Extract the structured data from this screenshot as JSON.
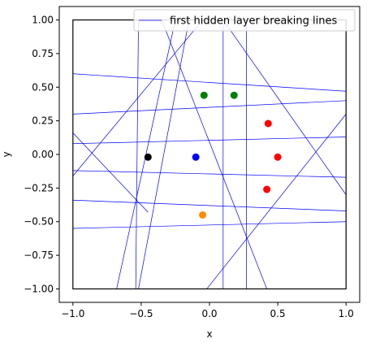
{
  "chart_data": {
    "type": "scatter",
    "xlabel": "x",
    "ylabel": "y",
    "xlim": [
      -1.1,
      1.1
    ],
    "ylim": [
      -1.1,
      1.1
    ],
    "x_ticks": [
      -1.0,
      -0.5,
      0.0,
      0.5,
      1.0
    ],
    "y_ticks": [
      -1.0,
      -0.75,
      -0.5,
      -0.25,
      0.0,
      0.25,
      0.5,
      0.75,
      1.0
    ],
    "x_tick_labels": [
      "−1.0",
      "−0.5",
      "0.0",
      "0.5",
      "1.0"
    ],
    "y_tick_labels": [
      "−1.00",
      "−0.75",
      "−0.50",
      "−0.25",
      "0.00",
      "0.25",
      "0.50",
      "0.75",
      "1.00"
    ],
    "grid": false,
    "legend": {
      "position": "top-right",
      "entries": [
        "first hidden layer breaking lines"
      ]
    },
    "box": {
      "x": [
        -1,
        1
      ],
      "y": [
        -1,
        1
      ],
      "color": "#000000"
    },
    "line_color": "#0000ff",
    "lines": [
      {
        "from": [
          -1.0,
          0.6
        ],
        "to": [
          1.0,
          0.47
        ]
      },
      {
        "from": [
          -1.0,
          0.3
        ],
        "to": [
          1.0,
          0.4
        ]
      },
      {
        "from": [
          -1.0,
          0.08
        ],
        "to": [
          1.0,
          0.13
        ]
      },
      {
        "from": [
          -1.0,
          -0.12
        ],
        "to": [
          1.0,
          -0.17
        ]
      },
      {
        "from": [
          -1.0,
          -0.34
        ],
        "to": [
          1.0,
          -0.42
        ]
      },
      {
        "from": [
          -1.0,
          -0.55
        ],
        "to": [
          1.0,
          -0.5
        ]
      },
      {
        "from": [
          -0.52,
          1.0
        ],
        "to": [
          -0.54,
          -1.0
        ]
      },
      {
        "from": [
          0.1,
          1.0
        ],
        "to": [
          0.1,
          -1.0
        ]
      },
      {
        "from": [
          0.27,
          1.0
        ],
        "to": [
          0.27,
          -1.0
        ]
      },
      {
        "from": [
          -0.25,
          1.0
        ],
        "to": [
          -0.68,
          -1.0
        ]
      },
      {
        "from": [
          -0.15,
          1.0
        ],
        "to": [
          -0.52,
          -1.0
        ]
      },
      {
        "from": [
          -0.35,
          1.0
        ],
        "to": [
          0.42,
          -1.0
        ]
      },
      {
        "from": [
          -1.0,
          -0.16
        ],
        "to": [
          -0.05,
          1.0
        ]
      },
      {
        "from": [
          -1.0,
          0.16
        ],
        "to": [
          -0.45,
          -0.43
        ]
      },
      {
        "from": [
          0.1,
          1.0
        ],
        "to": [
          1.0,
          -0.3
        ]
      },
      {
        "from": [
          -0.02,
          -1.0
        ],
        "to": [
          1.0,
          0.3
        ]
      }
    ],
    "points": [
      {
        "x": -0.45,
        "y": -0.02,
        "color": "#000000"
      },
      {
        "x": -0.1,
        "y": -0.02,
        "color": "#0000ff"
      },
      {
        "x": -0.04,
        "y": 0.44,
        "color": "#008000"
      },
      {
        "x": 0.18,
        "y": 0.44,
        "color": "#008000"
      },
      {
        "x": 0.43,
        "y": 0.23,
        "color": "#ff0000"
      },
      {
        "x": 0.5,
        "y": -0.02,
        "color": "#ff0000"
      },
      {
        "x": 0.42,
        "y": -0.26,
        "color": "#ff0000"
      },
      {
        "x": -0.05,
        "y": -0.45,
        "color": "#ff8c00"
      }
    ]
  }
}
